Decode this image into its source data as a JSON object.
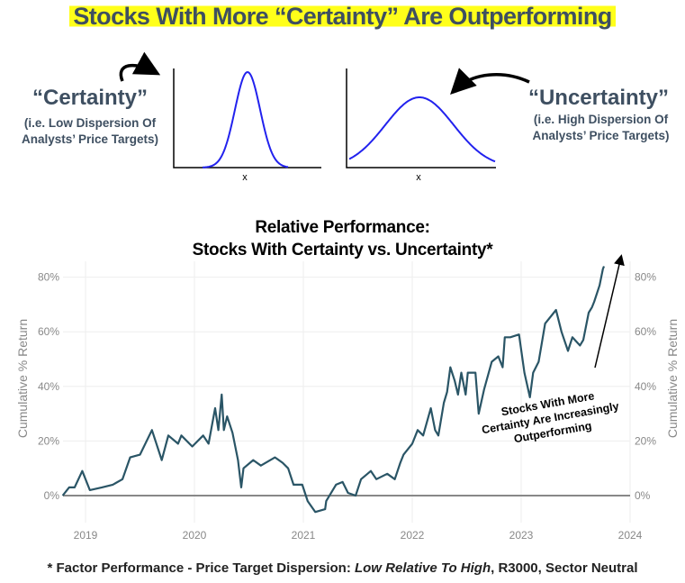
{
  "header": {
    "title": "Stocks With More “Certainty” Are Outperforming"
  },
  "diagrams": {
    "certainty": {
      "label": "“Certainty”",
      "sub1": "(i.e. Low Dispersion Of",
      "sub2": "Analysts’ Price Targets)",
      "axis_label": "x"
    },
    "uncertainty": {
      "label": "“Uncertainty”",
      "sub1": "(i.e. High Dispersion Of",
      "sub2": "Analysts’ Price Targets)",
      "axis_label": "x"
    },
    "curve_color": "#2222ee"
  },
  "chart_data": {
    "type": "line",
    "title_line1": "Relative Performance:",
    "title_line2": "Stocks With Certainty vs. Uncertainty*",
    "ylabel_left": "Cumulative % Return",
    "ylabel_right": "Cumulative % Return",
    "xlim": [
      2018.8,
      2024
    ],
    "ylim": [
      -7,
      88
    ],
    "x_ticks": [
      "2019",
      "2020",
      "2021",
      "2022",
      "2023",
      "2024"
    ],
    "y_ticks": [
      "0%",
      "20%",
      "40%",
      "60%",
      "80%"
    ],
    "y_tick_values": [
      0,
      20,
      40,
      60,
      80
    ],
    "grid": true,
    "line_color": "#2a5566",
    "annotation": {
      "line1": "Stocks With More",
      "line2": "Certainty Are Increasingly",
      "line3": "Outperforming"
    },
    "series": [
      {
        "x": [
          2018.79,
          2018.85,
          2018.9,
          2018.97,
          2019.04,
          2019.15,
          2019.25,
          2019.34,
          2019.41,
          2019.5,
          2019.61,
          2019.7,
          2019.76,
          2019.85,
          2019.88,
          2019.98,
          2020.08,
          2020.13,
          2020.19,
          2020.22,
          2020.25,
          2020.27,
          2020.3,
          2020.35,
          2020.4,
          2020.43,
          2020.45,
          2020.54,
          2020.61,
          2020.74,
          2020.81,
          2020.86,
          2020.91,
          2020.99,
          2021.04,
          2021.11,
          2021.2,
          2021.21,
          2021.3,
          2021.36,
          2021.41,
          2021.48,
          2021.53,
          2021.62,
          2021.67,
          2021.77,
          2021.84,
          2021.89,
          2021.92,
          2022.0,
          2022.05,
          2022.1,
          2022.17,
          2022.21,
          2022.24,
          2022.29,
          2022.32,
          2022.35,
          2022.39,
          2022.42,
          2022.45,
          2022.49,
          2022.51,
          2022.58,
          2022.61,
          2022.66,
          2022.73,
          2022.79,
          2022.83,
          2022.85,
          2022.9,
          2022.98,
          2023.03,
          2023.08,
          2023.11,
          2023.16,
          2023.22,
          2023.32,
          2023.37,
          2023.43,
          2023.47,
          2023.54,
          2023.57,
          2023.62,
          2023.65,
          2023.67,
          2023.72,
          2023.75,
          2023.76
        ],
        "y": [
          0,
          3,
          3,
          9,
          2,
          3,
          4,
          6,
          14,
          15,
          24,
          13,
          22,
          19,
          22,
          18,
          22,
          19,
          32,
          24,
          37,
          24,
          29,
          23,
          13,
          3,
          10,
          13,
          11,
          14,
          12,
          10,
          4,
          4,
          -2,
          -6,
          -5,
          -2,
          4,
          5,
          1,
          0,
          6,
          9,
          6,
          8,
          6,
          12,
          15,
          19,
          24,
          22,
          32,
          24,
          22,
          34,
          38,
          47,
          42,
          37,
          45,
          37,
          45,
          45,
          30,
          39,
          49,
          51,
          47,
          58,
          58,
          59,
          45,
          36,
          45,
          49,
          63,
          68,
          60,
          53,
          58,
          55,
          57,
          67,
          69,
          71,
          77,
          83,
          84
        ]
      }
    ]
  },
  "footnote": {
    "prefix": "* Factor Performance - Price Target Dispersion: ",
    "italic": "Low Relative To High",
    "suffix": ", R3000, Sector Neutral"
  }
}
